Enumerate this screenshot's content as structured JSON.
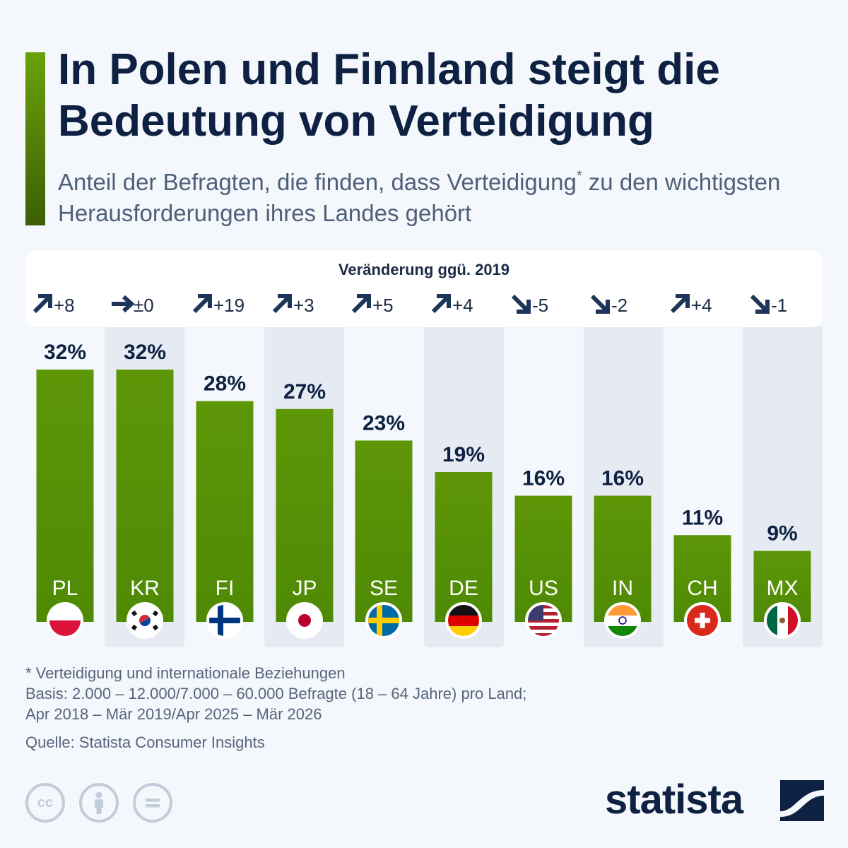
{
  "header": {
    "title": "In Polen und Finnland steigt die Bedeutung von Verteidigung",
    "subtitle_before": "Anteil der Befragten, die finden, dass Verteidigung",
    "subtitle_mark": "*",
    "subtitle_after": " zu den wichtigsten Herausforderungen ihres Landes gehört"
  },
  "change": {
    "title": "Veränderung ggü. 2019"
  },
  "chart_data": {
    "type": "bar",
    "unit": "%",
    "categories": [
      "PL",
      "KR",
      "FI",
      "JP",
      "SE",
      "DE",
      "US",
      "IN",
      "CH",
      "MX"
    ],
    "values": [
      32,
      32,
      28,
      27,
      23,
      19,
      16,
      16,
      11,
      9
    ],
    "value_labels": [
      "32%",
      "32%",
      "28%",
      "27%",
      "23%",
      "19%",
      "16%",
      "16%",
      "11%",
      "9%"
    ],
    "changes": [
      8,
      0,
      19,
      3,
      5,
      4,
      -5,
      -2,
      4,
      -1
    ],
    "change_labels": [
      "+8",
      "±0",
      "+19",
      "+3",
      "+5",
      "+4",
      "-5",
      "-2",
      "+4",
      "-1"
    ],
    "ylim": [
      0,
      32
    ],
    "bar_color": "#4f8a05",
    "bar_color_top": "#5d9607"
  },
  "footer": {
    "note": "* Verteidigung und internationale Beziehungen",
    "basis_1": "Basis: 2.000 – 12.000/7.000 – 60.000 Befragte (18 – 64 Jahre) pro Land;",
    "basis_2": "Apr 2018 – Mär 2019/Apr 2025 – Mär 2026",
    "source": "Quelle: Statista Consumer Insights",
    "brand": "statista",
    "cc_icons": [
      "cc-icon",
      "by-icon",
      "nd-icon"
    ]
  }
}
